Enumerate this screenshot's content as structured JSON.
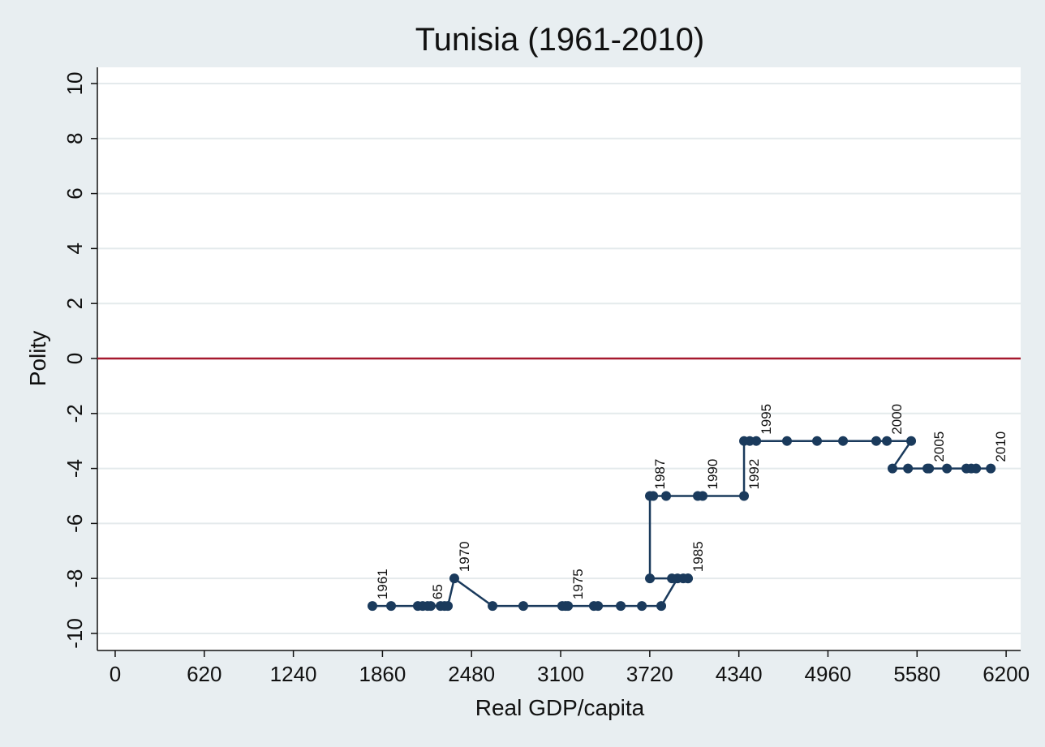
{
  "chart_data": {
    "type": "line",
    "title": "Tunisia (1961-2010)",
    "xlabel": "Real GDP/capita",
    "ylabel": "Polity",
    "xlim": [
      -124,
      6301
    ],
    "ylim": [
      -10.62,
      10.59
    ],
    "xticks": [
      0,
      620,
      1240,
      1860,
      2480,
      3100,
      3720,
      4340,
      4960,
      5580,
      6200
    ],
    "yticks": [
      10,
      8,
      6,
      4,
      2,
      0,
      -2,
      -4,
      -6,
      -8,
      -10
    ],
    "grid": true,
    "hline": 0,
    "hline_color": "#a6192e",
    "series": [
      {
        "color": "#1a3a5c",
        "x": [
          1790,
          1920,
          2106,
          2140,
          2174,
          2196,
          2264,
          2292,
          2315,
          2360,
          2626,
          2840,
          3111,
          3134,
          3151,
          3331,
          3360,
          3518,
          3665,
          3800,
          3913,
          3953,
          3986,
          3874,
          3986,
          3721,
          3721,
          3744,
          3834,
          4088,
          4054,
          4376,
          4376,
          4416,
          4461,
          4675,
          4884,
          5065,
          5296,
          5370,
          5539,
          5409,
          5517,
          5652,
          5664,
          5788,
          5923,
          5957,
          5991,
          6093
        ],
        "values": [
          -9,
          -9,
          -9,
          -9,
          -9,
          -9,
          -9,
          -9,
          -9,
          -8,
          -9,
          -9,
          -9,
          -9,
          -9,
          -9,
          -9,
          -9,
          -9,
          -9,
          -8,
          -8,
          -8,
          -8,
          -8,
          -8,
          -5,
          -5,
          -5,
          -5,
          -5,
          -5,
          -3,
          -3,
          -3,
          -3,
          -3,
          -3,
          -3,
          -3,
          -3,
          -4,
          -4,
          -4,
          -4,
          -4,
          -4,
          -4,
          -4,
          -4
        ],
        "point_labels": [
          "1961",
          null,
          null,
          null,
          "65",
          null,
          null,
          null,
          null,
          "1970",
          null,
          null,
          null,
          null,
          "1975",
          null,
          null,
          null,
          null,
          null,
          null,
          null,
          null,
          null,
          "1985",
          null,
          "1987",
          null,
          null,
          "1990",
          null,
          "1992",
          null,
          null,
          "1995",
          null,
          null,
          null,
          null,
          "2000",
          null,
          null,
          null,
          null,
          "2005",
          null,
          null,
          null,
          null,
          "2010"
        ]
      }
    ]
  }
}
